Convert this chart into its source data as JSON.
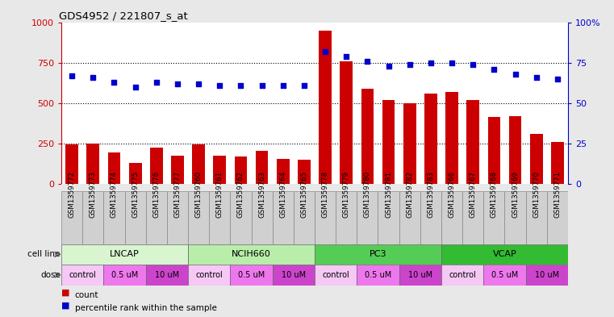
{
  "title": "GDS4952 / 221807_s_at",
  "samples": [
    "GSM1359772",
    "GSM1359773",
    "GSM1359774",
    "GSM1359775",
    "GSM1359776",
    "GSM1359777",
    "GSM1359760",
    "GSM1359761",
    "GSM1359762",
    "GSM1359763",
    "GSM1359764",
    "GSM1359765",
    "GSM1359778",
    "GSM1359779",
    "GSM1359780",
    "GSM1359781",
    "GSM1359782",
    "GSM1359783",
    "GSM1359766",
    "GSM1359767",
    "GSM1359768",
    "GSM1359769",
    "GSM1359770",
    "GSM1359771"
  ],
  "counts": [
    245,
    250,
    195,
    130,
    225,
    175,
    245,
    175,
    170,
    205,
    155,
    150,
    950,
    760,
    590,
    520,
    500,
    560,
    570,
    520,
    415,
    420,
    310,
    260
  ],
  "percentiles": [
    67,
    66,
    63,
    60,
    63,
    62,
    62,
    61,
    61,
    61,
    61,
    61,
    82,
    79,
    76,
    73,
    74,
    75,
    75,
    74,
    71,
    68,
    66,
    65
  ],
  "cell_lines": [
    {
      "name": "LNCAP",
      "start": 0,
      "end": 6,
      "color": "#d9f5d0"
    },
    {
      "name": "NCIH660",
      "start": 6,
      "end": 12,
      "color": "#b8edaa"
    },
    {
      "name": "PC3",
      "start": 12,
      "end": 18,
      "color": "#55cc55"
    },
    {
      "name": "VCAP",
      "start": 18,
      "end": 24,
      "color": "#33bb33"
    }
  ],
  "doses": [
    {
      "name": "control",
      "start": 0,
      "end": 2,
      "color": "#f5c8f5"
    },
    {
      "name": "0.5 uM",
      "start": 2,
      "end": 4,
      "color": "#ee77ee"
    },
    {
      "name": "10 uM",
      "start": 4,
      "end": 6,
      "color": "#cc44cc"
    },
    {
      "name": "control",
      "start": 6,
      "end": 8,
      "color": "#f5c8f5"
    },
    {
      "name": "0.5 uM",
      "start": 8,
      "end": 10,
      "color": "#ee77ee"
    },
    {
      "name": "10 uM",
      "start": 10,
      "end": 12,
      "color": "#cc44cc"
    },
    {
      "name": "control",
      "start": 12,
      "end": 14,
      "color": "#f5c8f5"
    },
    {
      "name": "0.5 uM",
      "start": 14,
      "end": 16,
      "color": "#ee77ee"
    },
    {
      "name": "10 uM",
      "start": 16,
      "end": 18,
      "color": "#cc44cc"
    },
    {
      "name": "control",
      "start": 18,
      "end": 20,
      "color": "#f5c8f5"
    },
    {
      "name": "0.5 uM",
      "start": 20,
      "end": 22,
      "color": "#ee77ee"
    },
    {
      "name": "10 uM",
      "start": 22,
      "end": 24,
      "color": "#cc44cc"
    }
  ],
  "bar_color": "#cc0000",
  "dot_color": "#0000cc",
  "left_ylim": [
    0,
    1000
  ],
  "left_yticks": [
    0,
    250,
    500,
    750,
    1000
  ],
  "right_yticks": [
    0,
    25,
    50,
    75,
    100
  ],
  "right_yticklabels": [
    "0",
    "25",
    "50",
    "75",
    "100%"
  ],
  "bg_color": "#e8e8e8",
  "plot_bg": "#ffffff",
  "grid_color": "#000000",
  "tick_bg": "#d0d0d0"
}
